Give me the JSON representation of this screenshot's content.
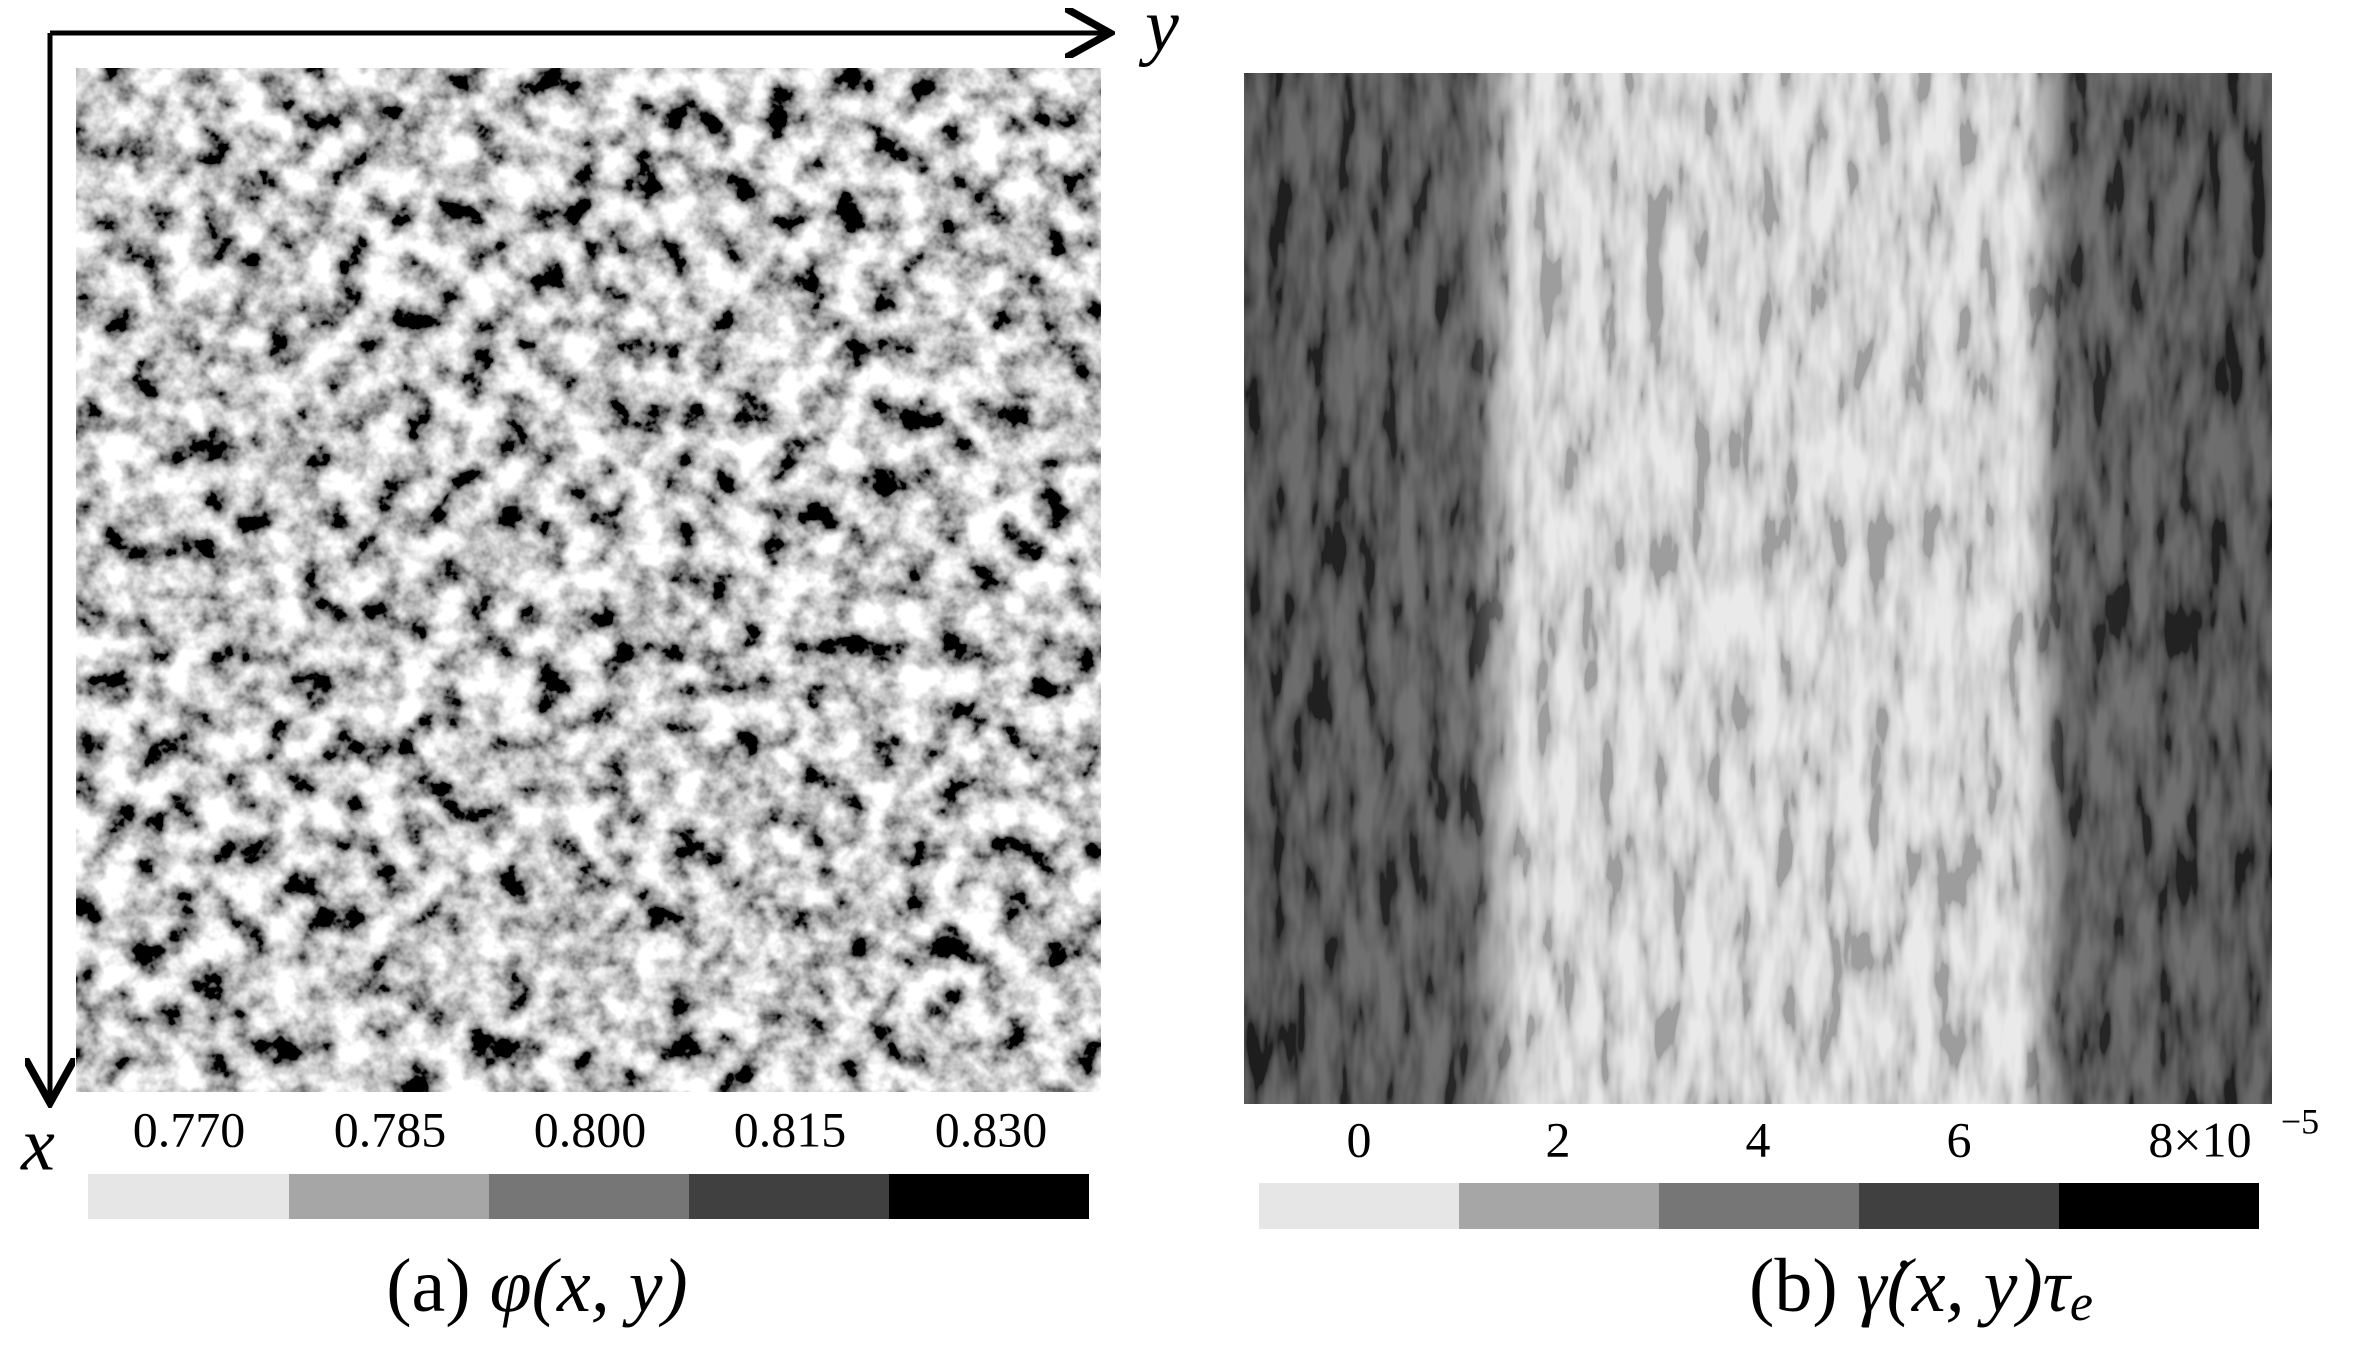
{
  "panels": [
    {
      "caption": {
        "label": "(a)",
        "math": "φ(x, y)"
      },
      "axes": {
        "x": "x",
        "y": "y"
      },
      "colorbar": {
        "ticks": [
          "0.770",
          "0.785",
          "0.800",
          "0.815",
          "0.830"
        ]
      }
    },
    {
      "caption": {
        "label": "(b)",
        "math": "γ̇(x, y)τ",
        "subscript": "e"
      },
      "colorbar": {
        "ticks": [
          "0",
          "2",
          "4",
          "6",
          "8×10"
        ],
        "exponent": "−5"
      }
    }
  ]
}
